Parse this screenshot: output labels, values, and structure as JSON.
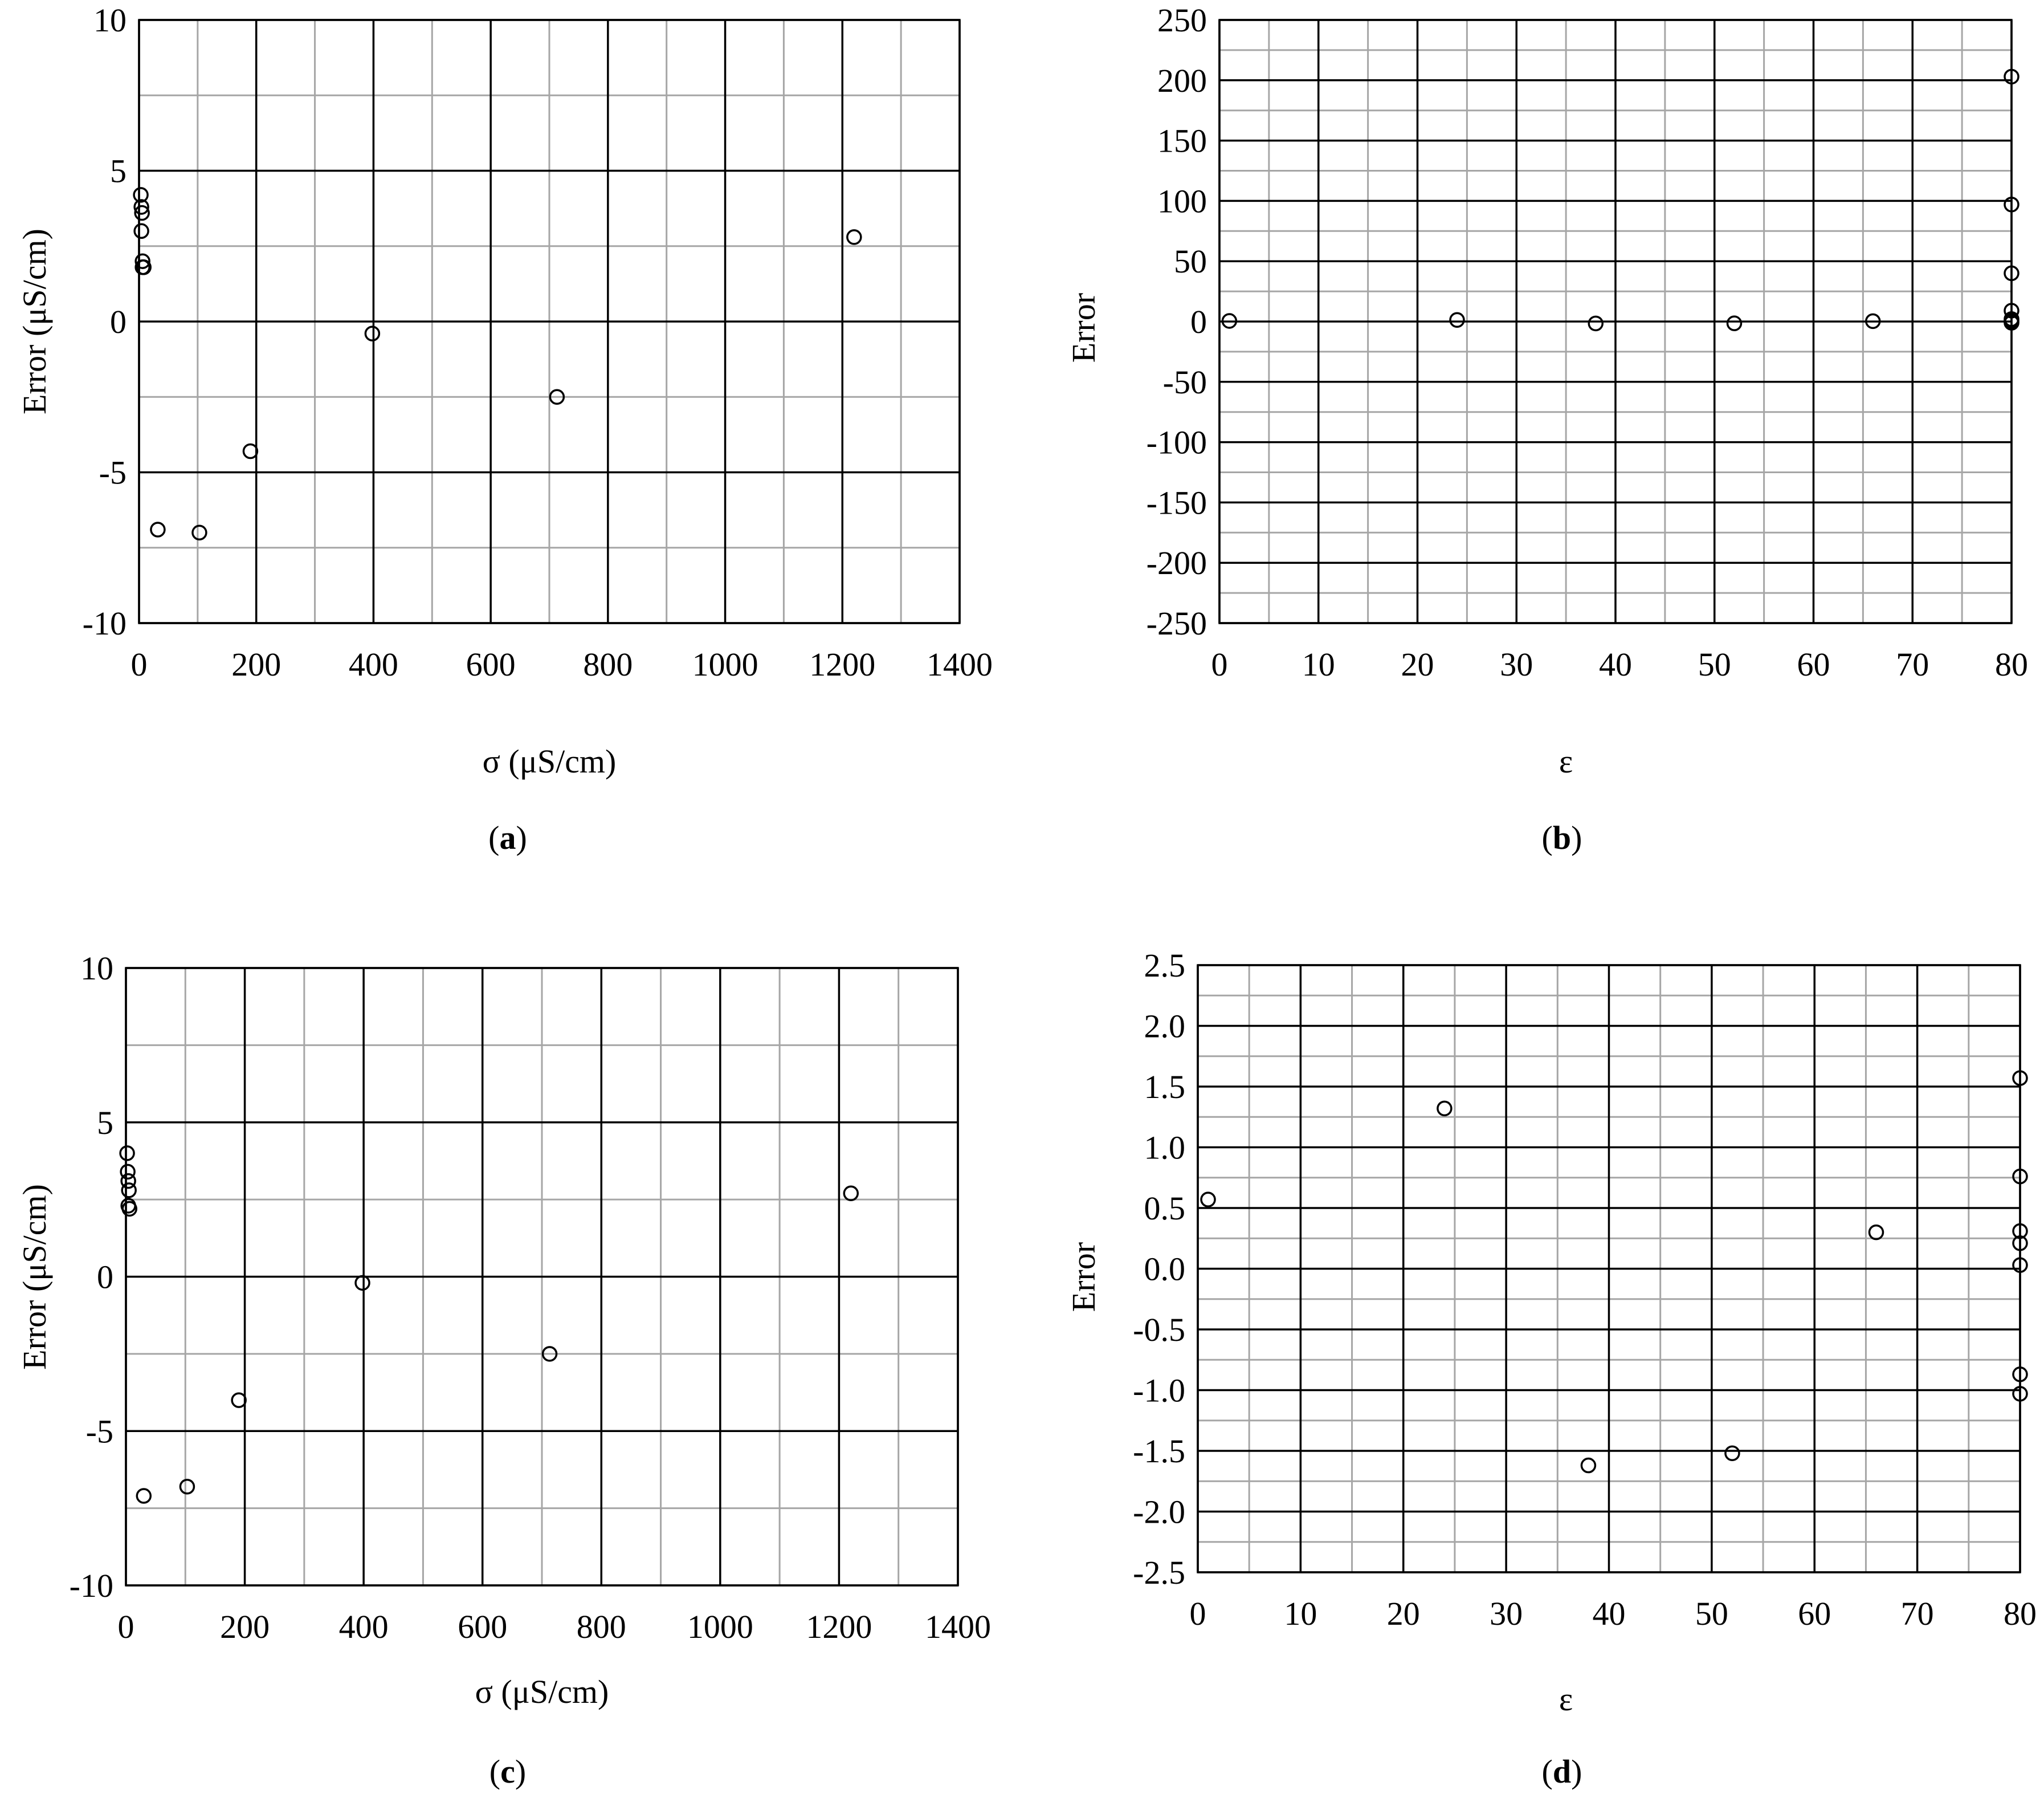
{
  "chart_data": [
    {
      "panel": "(a)",
      "panel_letter": "a",
      "type": "scatter",
      "title": "",
      "xlabel": "σ (μS/cm)",
      "ylabel": "Error (μS/cm)",
      "xlim": [
        0,
        1400
      ],
      "ylim": [
        -10,
        10
      ],
      "x_major_ticks": [
        0,
        200,
        400,
        600,
        800,
        1000,
        1200,
        1400
      ],
      "x_minor_step": 100,
      "y_major_ticks": [
        -10,
        -5,
        0,
        5,
        10
      ],
      "y_minor_step": 2.5,
      "grid": true,
      "legend": "none",
      "marker": "open-circle",
      "x": [
        3,
        4,
        5,
        4,
        6,
        6,
        8,
        32,
        103,
        190,
        398,
        713,
        1220
      ],
      "y": [
        4.2,
        3.8,
        3.6,
        3.0,
        2.0,
        1.8,
        1.8,
        -6.9,
        -7.0,
        -4.3,
        -0.4,
        -2.5,
        2.8
      ]
    },
    {
      "panel": "(b)",
      "panel_letter": "b",
      "type": "scatter",
      "title": "",
      "xlabel": "ε",
      "ylabel": "Error",
      "xlim": [
        0,
        80
      ],
      "ylim": [
        -250,
        250
      ],
      "x_major_ticks": [
        0,
        10,
        20,
        30,
        40,
        50,
        60,
        70,
        80
      ],
      "x_minor_step": 5,
      "y_major_ticks": [
        -250,
        -200,
        -150,
        -100,
        -50,
        0,
        50,
        100,
        150,
        200,
        250
      ],
      "y_minor_step": 25,
      "grid": true,
      "legend": "none",
      "marker": "open-circle",
      "x": [
        1,
        24,
        38,
        52,
        66,
        80,
        80,
        80,
        80,
        80,
        80,
        80,
        80
      ],
      "y": [
        0.5,
        1.3,
        -1.6,
        -1.5,
        0.3,
        203,
        97,
        40,
        9,
        2,
        1,
        0,
        -1
      ]
    },
    {
      "panel": "(c)",
      "panel_letter": "c",
      "type": "scatter",
      "title": "",
      "xlabel": "σ (μS/cm)",
      "ylabel": "Error (μS/cm)",
      "xlim": [
        0,
        1400
      ],
      "ylim": [
        -10,
        10
      ],
      "x_major_ticks": [
        0,
        200,
        400,
        600,
        800,
        1000,
        1200,
        1400
      ],
      "x_minor_step": 100,
      "y_major_ticks": [
        -10,
        -5,
        0,
        5,
        10
      ],
      "y_minor_step": 2.5,
      "grid": true,
      "legend": "none",
      "marker": "open-circle",
      "x": [
        2,
        3,
        4,
        5,
        4,
        6,
        30,
        103,
        190,
        398,
        713,
        1220
      ],
      "y": [
        4.0,
        3.4,
        3.1,
        2.8,
        2.3,
        2.2,
        -7.1,
        -6.8,
        -4.0,
        -0.2,
        -2.5,
        2.7
      ]
    },
    {
      "panel": "(d)",
      "panel_letter": "d",
      "type": "scatter",
      "title": "",
      "xlabel": "ε",
      "ylabel": "Error",
      "xlim": [
        0,
        80
      ],
      "ylim": [
        -2.5,
        2.5
      ],
      "x_major_ticks": [
        0,
        10,
        20,
        30,
        40,
        50,
        60,
        70,
        80
      ],
      "x_tick_labels": [
        "0",
        "10",
        "20",
        "30",
        "40",
        "50",
        "60",
        "70",
        "80"
      ],
      "x_minor_step": 5,
      "y_major_ticks": [
        -2.5,
        -2.0,
        -1.5,
        -1.0,
        -0.5,
        0.0,
        0.5,
        1.0,
        1.5,
        2.0,
        2.5
      ],
      "y_tick_labels": [
        "-2.5",
        "-2.0",
        "-1.5",
        "-1.0",
        "-0.5",
        "0.0",
        "0.5",
        "1.0",
        "1.5",
        "2.0",
        "2.5"
      ],
      "y_minor_step": 0.25,
      "grid": true,
      "legend": "none",
      "marker": "open-circle",
      "x": [
        1,
        24,
        38,
        52,
        66,
        80,
        80,
        80,
        80,
        80,
        80,
        80
      ],
      "y": [
        0.57,
        1.32,
        -1.62,
        -1.52,
        0.3,
        1.57,
        0.76,
        0.31,
        0.21,
        0.03,
        -0.87,
        -1.03
      ]
    }
  ]
}
